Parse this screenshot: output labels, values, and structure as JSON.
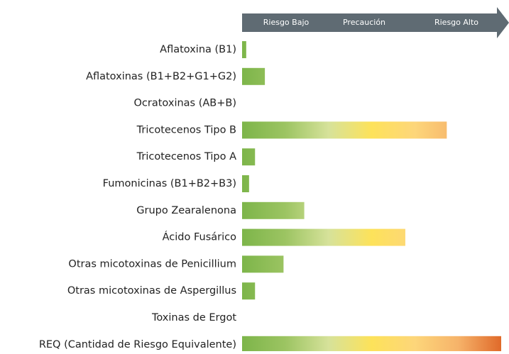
{
  "chart_data": {
    "type": "bar",
    "orientation": "horizontal",
    "scale_labels": [
      "Riesgo Bajo",
      "Precaución",
      "Riesgo Alto"
    ],
    "categories": [
      "Aflatoxina (B1)",
      "Aflatoxinas (B1+B2+G1+G2)",
      "Ocratoxinas (AB+B)",
      "Tricotecenos Tipo B",
      "Tricotecenos Tipo A",
      "Fumonicinas (B1+B2+B3)",
      "Grupo Zearalenona",
      "Ácido Fusárico",
      "Otras micotoxinas de Penicillium",
      "Otras micotoxinas de Aspergillus",
      "Toxinas de Ergot",
      "REQ (Cantidad de Riesgo Equivalente)"
    ],
    "values": [
      1.6,
      8.8,
      0,
      79,
      5,
      2.7,
      24,
      63,
      16,
      5,
      0,
      100
    ],
    "xlim": [
      0,
      100
    ],
    "colors": [
      "#7db54a",
      "#9cc462",
      "#d6e29a",
      "#fde25a",
      "#fdd67a",
      "#f6b36a",
      "#e06a2a"
    ],
    "arrow_color": "#5f6b73"
  }
}
